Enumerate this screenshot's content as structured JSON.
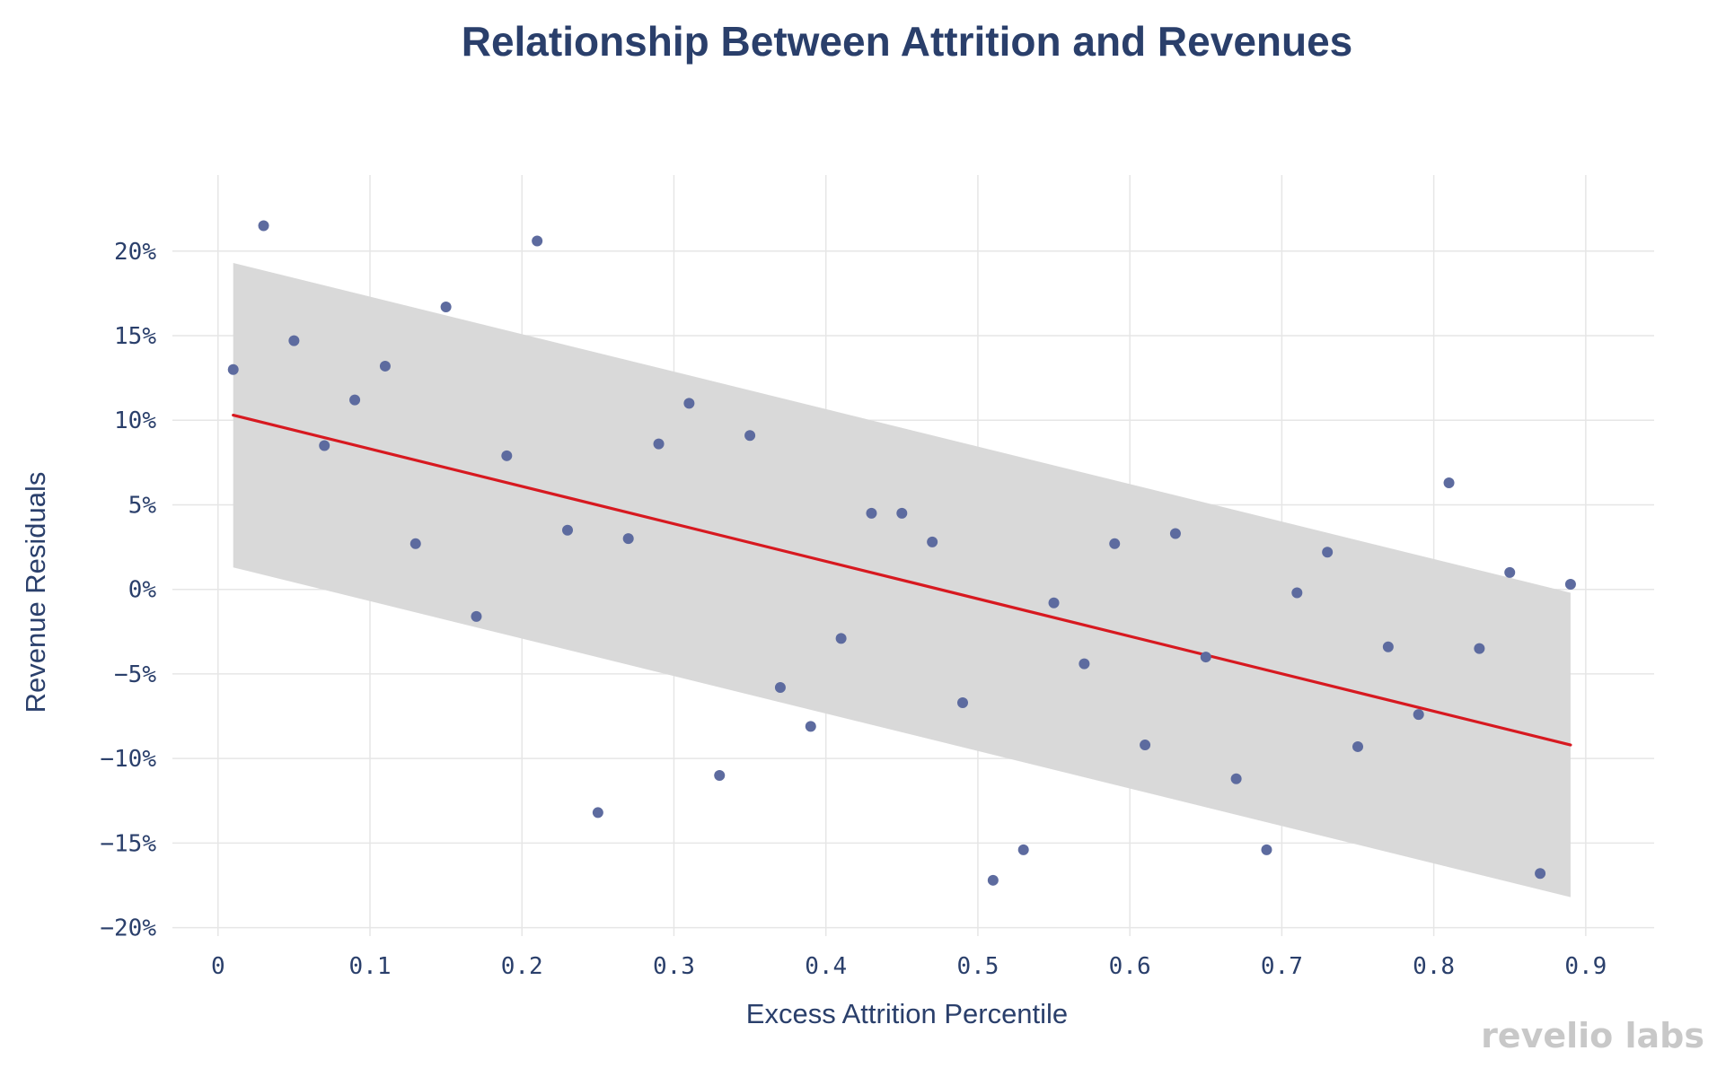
{
  "colors": {
    "title": "#2a3f6b",
    "axis_text": "#2a3f6b",
    "points": "#5d6b9f",
    "fit_line": "#d71920",
    "band": "#d9d9d9",
    "grid": "#e6e6e6",
    "watermark": "#c8c8c8"
  },
  "brand": {
    "watermark": "revelio labs"
  },
  "chart_data": {
    "type": "scatter",
    "title": "Relationship Between Attrition and Revenues",
    "xlabel": "Excess Attrition Percentile",
    "ylabel": "Revenue Residuals",
    "xlim": [
      -0.03,
      0.945
    ],
    "ylim": [
      -20.5,
      24.5
    ],
    "grid": true,
    "x_ticks": [
      0,
      0.1,
      0.2,
      0.3,
      0.4,
      0.5,
      0.6,
      0.7,
      0.8,
      0.9
    ],
    "x_tick_labels": [
      "0",
      "0.1",
      "0.2",
      "0.3",
      "0.4",
      "0.5",
      "0.6",
      "0.7",
      "0.8",
      "0.9"
    ],
    "y_ticks": [
      -20,
      -15,
      -10,
      -5,
      0,
      5,
      10,
      15,
      20
    ],
    "y_tick_labels": [
      "−20%",
      "−15%",
      "−10%",
      "−5%",
      "0%",
      "5%",
      "10%",
      "15%",
      "20%"
    ],
    "points": [
      {
        "x": 0.01,
        "y": 13.0
      },
      {
        "x": 0.03,
        "y": 21.5
      },
      {
        "x": 0.05,
        "y": 14.7
      },
      {
        "x": 0.07,
        "y": 8.5
      },
      {
        "x": 0.09,
        "y": 11.2
      },
      {
        "x": 0.11,
        "y": 13.2
      },
      {
        "x": 0.13,
        "y": 2.7
      },
      {
        "x": 0.15,
        "y": 16.7
      },
      {
        "x": 0.17,
        "y": -1.6
      },
      {
        "x": 0.19,
        "y": 7.9
      },
      {
        "x": 0.21,
        "y": 20.6
      },
      {
        "x": 0.23,
        "y": 3.5
      },
      {
        "x": 0.25,
        "y": -13.2
      },
      {
        "x": 0.27,
        "y": 3.0
      },
      {
        "x": 0.29,
        "y": 8.6
      },
      {
        "x": 0.31,
        "y": 11.0
      },
      {
        "x": 0.33,
        "y": -11.0
      },
      {
        "x": 0.35,
        "y": 9.1
      },
      {
        "x": 0.37,
        "y": -5.8
      },
      {
        "x": 0.39,
        "y": -8.1
      },
      {
        "x": 0.41,
        "y": -2.9
      },
      {
        "x": 0.43,
        "y": 4.5
      },
      {
        "x": 0.45,
        "y": 4.5
      },
      {
        "x": 0.47,
        "y": 2.8
      },
      {
        "x": 0.49,
        "y": -6.7
      },
      {
        "x": 0.51,
        "y": -17.2
      },
      {
        "x": 0.53,
        "y": -15.4
      },
      {
        "x": 0.55,
        "y": -0.8
      },
      {
        "x": 0.57,
        "y": -4.4
      },
      {
        "x": 0.59,
        "y": 2.7
      },
      {
        "x": 0.61,
        "y": -9.2
      },
      {
        "x": 0.63,
        "y": 3.3
      },
      {
        "x": 0.65,
        "y": -4.0
      },
      {
        "x": 0.67,
        "y": -11.2
      },
      {
        "x": 0.69,
        "y": -15.4
      },
      {
        "x": 0.71,
        "y": -0.2
      },
      {
        "x": 0.73,
        "y": 2.2
      },
      {
        "x": 0.75,
        "y": -9.3
      },
      {
        "x": 0.77,
        "y": -3.4
      },
      {
        "x": 0.79,
        "y": -7.4
      },
      {
        "x": 0.81,
        "y": 6.3
      },
      {
        "x": 0.83,
        "y": -3.5
      },
      {
        "x": 0.85,
        "y": 1.0
      },
      {
        "x": 0.87,
        "y": -16.8
      },
      {
        "x": 0.89,
        "y": 0.3
      }
    ],
    "fit_line": {
      "x": [
        0.01,
        0.89
      ],
      "y": [
        10.3,
        -9.2
      ]
    },
    "band": {
      "x": [
        0.01,
        0.89
      ],
      "upper": [
        19.3,
        -0.2
      ],
      "lower": [
        1.3,
        -18.2
      ]
    }
  }
}
